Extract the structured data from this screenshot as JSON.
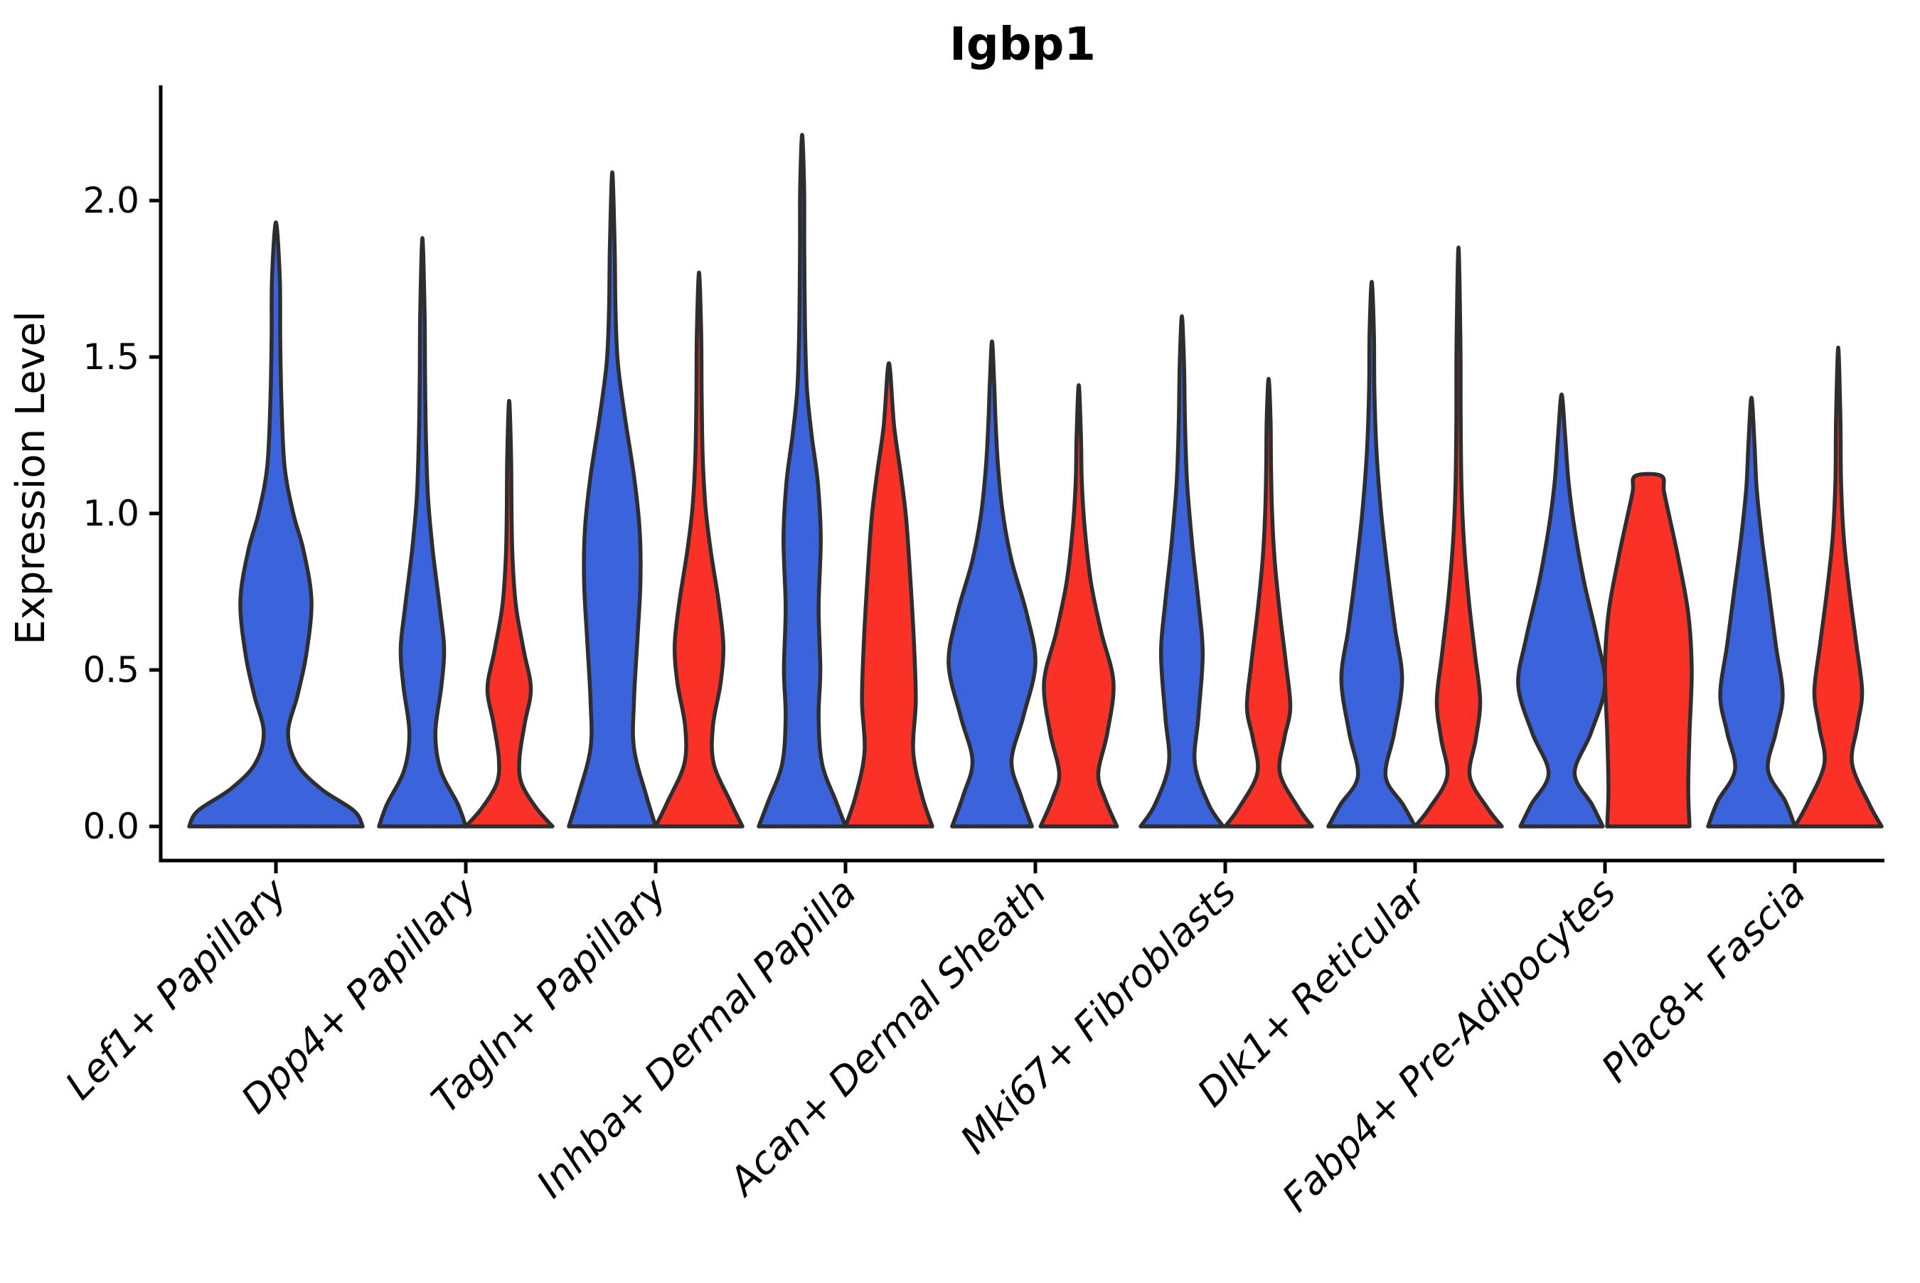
{
  "title": "Igbp1",
  "chart_data": {
    "type": "violin",
    "title": "Igbp1",
    "xlabel": "",
    "ylabel": "Expression Level",
    "yticks": [
      0.0,
      0.5,
      1.0,
      1.5,
      2.0
    ],
    "ylim": [
      -0.11,
      2.33
    ],
    "grid": false,
    "legend": "none",
    "split_groups": [
      "blue",
      "red"
    ],
    "colors": {
      "blue": "#3B63DB",
      "red": "#F93127",
      "outline": "#2E2E2E",
      "axis": "#000000"
    },
    "categories": [
      "Lef1+ Papillary",
      "Dpp4+ Papillary",
      "Tagln+ Papillary",
      "Inhba+ Dermal Papilla",
      "Acan+ Dermal Sheath",
      "Mki67+ Fibroblasts",
      "Dlk1+ Reticular",
      "Fabp4+ Pre-Adipocytes",
      "Plac8+ Fascia"
    ],
    "violins": [
      {
        "category": "Lef1+ Papillary",
        "group": "blue",
        "single": true,
        "max_expression": 1.93,
        "flat_top": false,
        "profile": [
          [
            0,
            1.0
          ],
          [
            0.05,
            0.9
          ],
          [
            0.12,
            0.52
          ],
          [
            0.2,
            0.24
          ],
          [
            0.3,
            0.14
          ],
          [
            0.42,
            0.25
          ],
          [
            0.55,
            0.35
          ],
          [
            0.72,
            0.41
          ],
          [
            0.88,
            0.32
          ],
          [
            1.0,
            0.2
          ],
          [
            1.15,
            0.1
          ],
          [
            1.35,
            0.065
          ],
          [
            1.55,
            0.05
          ],
          [
            1.75,
            0.045
          ],
          [
            1.93,
            0.015
          ]
        ]
      },
      {
        "category": "Dpp4+ Papillary",
        "group": "blue",
        "single": false,
        "max_expression": 1.88,
        "flat_top": false,
        "profile": [
          [
            0,
            1.0
          ],
          [
            0.07,
            0.82
          ],
          [
            0.18,
            0.42
          ],
          [
            0.3,
            0.3
          ],
          [
            0.45,
            0.44
          ],
          [
            0.57,
            0.5
          ],
          [
            0.7,
            0.4
          ],
          [
            0.88,
            0.24
          ],
          [
            1.05,
            0.13
          ],
          [
            1.25,
            0.08
          ],
          [
            1.45,
            0.06
          ],
          [
            1.65,
            0.05
          ],
          [
            1.88,
            0.015
          ]
        ]
      },
      {
        "category": "Dpp4+ Papillary",
        "group": "red",
        "single": false,
        "max_expression": 1.36,
        "flat_top": false,
        "profile": [
          [
            0,
            1.0
          ],
          [
            0.06,
            0.62
          ],
          [
            0.14,
            0.28
          ],
          [
            0.22,
            0.24
          ],
          [
            0.33,
            0.36
          ],
          [
            0.44,
            0.5
          ],
          [
            0.56,
            0.34
          ],
          [
            0.7,
            0.16
          ],
          [
            0.85,
            0.08
          ],
          [
            1.0,
            0.055
          ],
          [
            1.18,
            0.045
          ],
          [
            1.36,
            0.015
          ]
        ]
      },
      {
        "category": "Tagln+ Papillary",
        "group": "blue",
        "single": false,
        "max_expression": 2.09,
        "flat_top": false,
        "profile": [
          [
            0,
            1.0
          ],
          [
            0.1,
            0.78
          ],
          [
            0.25,
            0.5
          ],
          [
            0.4,
            0.5
          ],
          [
            0.6,
            0.58
          ],
          [
            0.78,
            0.65
          ],
          [
            0.95,
            0.63
          ],
          [
            1.12,
            0.5
          ],
          [
            1.3,
            0.3
          ],
          [
            1.48,
            0.13
          ],
          [
            1.65,
            0.075
          ],
          [
            1.85,
            0.055
          ],
          [
            2.09,
            0.015
          ]
        ]
      },
      {
        "category": "Tagln+ Papillary",
        "group": "red",
        "single": false,
        "max_expression": 1.77,
        "flat_top": false,
        "profile": [
          [
            0,
            1.0
          ],
          [
            0.08,
            0.72
          ],
          [
            0.2,
            0.34
          ],
          [
            0.32,
            0.32
          ],
          [
            0.46,
            0.5
          ],
          [
            0.58,
            0.56
          ],
          [
            0.72,
            0.45
          ],
          [
            0.88,
            0.27
          ],
          [
            1.02,
            0.15
          ],
          [
            1.18,
            0.085
          ],
          [
            1.38,
            0.06
          ],
          [
            1.58,
            0.05
          ],
          [
            1.77,
            0.015
          ]
        ]
      },
      {
        "category": "Inhba+ Dermal Papilla",
        "group": "blue",
        "single": false,
        "max_expression": 2.21,
        "flat_top": false,
        "profile": [
          [
            0,
            1.0
          ],
          [
            0.08,
            0.78
          ],
          [
            0.2,
            0.46
          ],
          [
            0.35,
            0.38
          ],
          [
            0.5,
            0.42
          ],
          [
            0.7,
            0.38
          ],
          [
            0.92,
            0.43
          ],
          [
            1.1,
            0.36
          ],
          [
            1.25,
            0.22
          ],
          [
            1.4,
            0.11
          ],
          [
            1.6,
            0.065
          ],
          [
            1.85,
            0.05
          ],
          [
            2.05,
            0.045
          ],
          [
            2.21,
            0.015
          ]
        ]
      },
      {
        "category": "Inhba+ Dermal Papilla",
        "group": "red",
        "single": false,
        "max_expression": 1.48,
        "flat_top": false,
        "profile": [
          [
            0,
            1.0
          ],
          [
            0.1,
            0.76
          ],
          [
            0.24,
            0.56
          ],
          [
            0.4,
            0.62
          ],
          [
            0.58,
            0.58
          ],
          [
            0.78,
            0.5
          ],
          [
            0.98,
            0.4
          ],
          [
            1.12,
            0.28
          ],
          [
            1.28,
            0.12
          ],
          [
            1.48,
            0.015
          ]
        ]
      },
      {
        "category": "Acan+ Dermal Sheath",
        "group": "blue",
        "single": false,
        "max_expression": 1.55,
        "flat_top": false,
        "profile": [
          [
            0,
            0.92
          ],
          [
            0.1,
            0.66
          ],
          [
            0.21,
            0.45
          ],
          [
            0.35,
            0.72
          ],
          [
            0.52,
            1.0
          ],
          [
            0.68,
            0.8
          ],
          [
            0.85,
            0.45
          ],
          [
            1.0,
            0.25
          ],
          [
            1.15,
            0.14
          ],
          [
            1.3,
            0.08
          ],
          [
            1.42,
            0.05
          ],
          [
            1.55,
            0.015
          ]
        ]
      },
      {
        "category": "Acan+ Dermal Sheath",
        "group": "red",
        "single": false,
        "max_expression": 1.41,
        "flat_top": false,
        "profile": [
          [
            0,
            0.88
          ],
          [
            0.09,
            0.6
          ],
          [
            0.17,
            0.45
          ],
          [
            0.3,
            0.66
          ],
          [
            0.46,
            0.8
          ],
          [
            0.62,
            0.52
          ],
          [
            0.78,
            0.28
          ],
          [
            0.95,
            0.14
          ],
          [
            1.1,
            0.07
          ],
          [
            1.25,
            0.05
          ],
          [
            1.41,
            0.015
          ]
        ]
      },
      {
        "category": "Mki67+ Fibroblasts",
        "group": "blue",
        "single": false,
        "max_expression": 1.63,
        "flat_top": false,
        "profile": [
          [
            0,
            0.95
          ],
          [
            0.07,
            0.62
          ],
          [
            0.2,
            0.3
          ],
          [
            0.35,
            0.38
          ],
          [
            0.55,
            0.48
          ],
          [
            0.72,
            0.38
          ],
          [
            0.9,
            0.24
          ],
          [
            1.1,
            0.12
          ],
          [
            1.3,
            0.07
          ],
          [
            1.48,
            0.05
          ],
          [
            1.63,
            0.015
          ]
        ]
      },
      {
        "category": "Mki67+ Fibroblasts",
        "group": "red",
        "single": false,
        "max_expression": 1.43,
        "flat_top": false,
        "profile": [
          [
            0,
            1.0
          ],
          [
            0.06,
            0.68
          ],
          [
            0.17,
            0.26
          ],
          [
            0.28,
            0.36
          ],
          [
            0.38,
            0.5
          ],
          [
            0.52,
            0.4
          ],
          [
            0.68,
            0.26
          ],
          [
            0.85,
            0.14
          ],
          [
            1.0,
            0.08
          ],
          [
            1.15,
            0.055
          ],
          [
            1.3,
            0.045
          ],
          [
            1.43,
            0.015
          ]
        ]
      },
      {
        "category": "Dlk1+ Reticular",
        "group": "blue",
        "single": false,
        "max_expression": 1.74,
        "flat_top": false,
        "profile": [
          [
            0,
            1.0
          ],
          [
            0.07,
            0.72
          ],
          [
            0.16,
            0.32
          ],
          [
            0.3,
            0.52
          ],
          [
            0.47,
            0.7
          ],
          [
            0.63,
            0.54
          ],
          [
            0.8,
            0.38
          ],
          [
            1.0,
            0.22
          ],
          [
            1.2,
            0.11
          ],
          [
            1.4,
            0.06
          ],
          [
            1.58,
            0.05
          ],
          [
            1.74,
            0.015
          ]
        ]
      },
      {
        "category": "Dlk1+ Reticular",
        "group": "red",
        "single": false,
        "max_expression": 1.85,
        "flat_top": false,
        "profile": [
          [
            0,
            1.0
          ],
          [
            0.06,
            0.66
          ],
          [
            0.16,
            0.26
          ],
          [
            0.28,
            0.4
          ],
          [
            0.4,
            0.5
          ],
          [
            0.55,
            0.38
          ],
          [
            0.72,
            0.24
          ],
          [
            0.9,
            0.13
          ],
          [
            1.08,
            0.07
          ],
          [
            1.3,
            0.05
          ],
          [
            1.55,
            0.045
          ],
          [
            1.85,
            0.015
          ]
        ]
      },
      {
        "category": "Fabp4+ Pre-Adipocytes",
        "group": "blue",
        "single": false,
        "max_expression": 1.38,
        "flat_top": false,
        "profile": [
          [
            0,
            0.95
          ],
          [
            0.07,
            0.7
          ],
          [
            0.17,
            0.3
          ],
          [
            0.3,
            0.68
          ],
          [
            0.45,
            1.0
          ],
          [
            0.6,
            0.82
          ],
          [
            0.78,
            0.52
          ],
          [
            0.95,
            0.3
          ],
          [
            1.1,
            0.16
          ],
          [
            1.25,
            0.08
          ],
          [
            1.38,
            0.015
          ]
        ]
      },
      {
        "category": "Fabp4+ Pre-Adipocytes",
        "group": "red",
        "single": false,
        "max_expression": 1.12,
        "flat_top": true,
        "profile": [
          [
            0,
            0.95
          ],
          [
            0.12,
            0.92
          ],
          [
            0.3,
            0.95
          ],
          [
            0.5,
            1.0
          ],
          [
            0.68,
            0.92
          ],
          [
            0.85,
            0.7
          ],
          [
            0.98,
            0.5
          ],
          [
            1.07,
            0.36
          ],
          [
            1.12,
            0.3
          ]
        ]
      },
      {
        "category": "Plac8+ Fascia",
        "group": "blue",
        "single": false,
        "max_expression": 1.37,
        "flat_top": false,
        "profile": [
          [
            0,
            1.0
          ],
          [
            0.08,
            0.78
          ],
          [
            0.18,
            0.38
          ],
          [
            0.3,
            0.56
          ],
          [
            0.42,
            0.72
          ],
          [
            0.58,
            0.56
          ],
          [
            0.75,
            0.4
          ],
          [
            0.92,
            0.24
          ],
          [
            1.08,
            0.12
          ],
          [
            1.22,
            0.07
          ],
          [
            1.37,
            0.015
          ]
        ]
      },
      {
        "category": "Plac8+ Fascia",
        "group": "red",
        "single": false,
        "max_expression": 1.53,
        "flat_top": false,
        "profile": [
          [
            0,
            1.0
          ],
          [
            0.07,
            0.72
          ],
          [
            0.2,
            0.32
          ],
          [
            0.32,
            0.44
          ],
          [
            0.43,
            0.55
          ],
          [
            0.58,
            0.42
          ],
          [
            0.75,
            0.26
          ],
          [
            0.92,
            0.13
          ],
          [
            1.1,
            0.065
          ],
          [
            1.3,
            0.05
          ],
          [
            1.53,
            0.015
          ]
        ]
      }
    ]
  }
}
